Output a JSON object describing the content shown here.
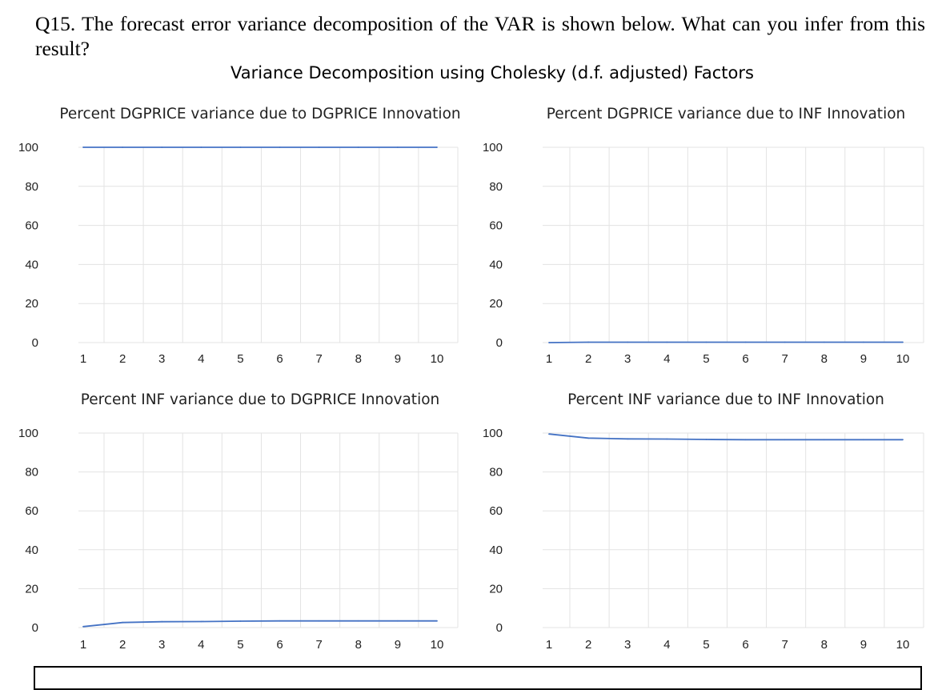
{
  "question": "Q15. The forecast error variance decomposition of the VAR is shown below. What can you infer from this result?",
  "figure_title": "Variance Decomposition using Cholesky (d.f. adjusted) Factors",
  "colors": {
    "line": "#4472C4",
    "grid": "#e3e3e3",
    "text": "#222222"
  },
  "chart_data": [
    {
      "type": "line",
      "title": "Percent DGPRICE variance due to DGPRICE Innovation",
      "x": [
        1,
        2,
        3,
        4,
        5,
        6,
        7,
        8,
        9,
        10
      ],
      "series": [
        {
          "values": [
            100,
            100,
            100,
            100,
            100,
            100,
            100,
            100,
            100,
            100
          ]
        }
      ],
      "ylim": [
        0,
        100
      ],
      "yticks": [
        0,
        20,
        40,
        60,
        80,
        100
      ],
      "grid": true
    },
    {
      "type": "line",
      "title": "Percent DGPRICE variance due to INF Innovation",
      "x": [
        1,
        2,
        3,
        4,
        5,
        6,
        7,
        8,
        9,
        10
      ],
      "series": [
        {
          "values": [
            0,
            0.2,
            0.2,
            0.2,
            0.2,
            0.2,
            0.2,
            0.2,
            0.2,
            0.2
          ]
        }
      ],
      "ylim": [
        0,
        100
      ],
      "yticks": [
        0,
        20,
        40,
        60,
        80,
        100
      ],
      "grid": true
    },
    {
      "type": "line",
      "title": "Percent INF variance due to DGPRICE Innovation",
      "x": [
        1,
        2,
        3,
        4,
        5,
        6,
        7,
        8,
        9,
        10
      ],
      "series": [
        {
          "values": [
            0.5,
            2.6,
            3.0,
            3.1,
            3.3,
            3.4,
            3.4,
            3.4,
            3.4,
            3.4
          ]
        }
      ],
      "ylim": [
        0,
        100
      ],
      "yticks": [
        0,
        20,
        40,
        60,
        80,
        100
      ],
      "grid": true
    },
    {
      "type": "line",
      "title": "Percent INF variance due to INF Innovation",
      "x": [
        1,
        2,
        3,
        4,
        5,
        6,
        7,
        8,
        9,
        10
      ],
      "series": [
        {
          "values": [
            99.5,
            97.4,
            97.0,
            96.9,
            96.7,
            96.6,
            96.6,
            96.6,
            96.6,
            96.6
          ]
        }
      ],
      "ylim": [
        0,
        100
      ],
      "yticks": [
        0,
        20,
        40,
        60,
        80,
        100
      ],
      "grid": true
    }
  ]
}
